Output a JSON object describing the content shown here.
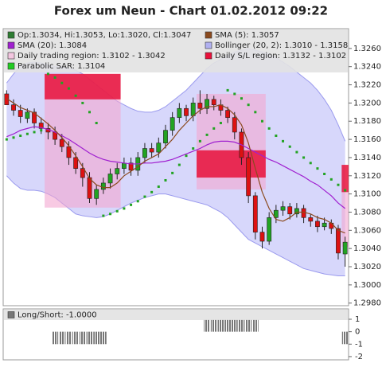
{
  "chart_data": {
    "type": "candlestick",
    "title": "Forex um Neun - Chart 01.02.2012 09:22",
    "ylim": [
      1.2978,
      1.328
    ],
    "yticks": [
      {
        "value": 1.298,
        "label": "1.2980"
      },
      {
        "value": 1.3,
        "label": "1.3000"
      },
      {
        "value": 1.302,
        "label": "1.3020"
      },
      {
        "value": 1.304,
        "label": "1.3040"
      },
      {
        "value": 1.306,
        "label": "1.3060"
      },
      {
        "value": 1.308,
        "label": "1.3080"
      },
      {
        "value": 1.31,
        "label": "1.3100"
      },
      {
        "value": 1.312,
        "label": "1.3120"
      },
      {
        "value": 1.314,
        "label": "1.3140"
      },
      {
        "value": 1.316,
        "label": "1.3160"
      },
      {
        "value": 1.318,
        "label": "1.3180"
      },
      {
        "value": 1.32,
        "label": "1.3200"
      },
      {
        "value": 1.322,
        "label": "1.3220"
      },
      {
        "value": 1.324,
        "label": "1.3240"
      },
      {
        "value": 1.326,
        "label": "1.3260"
      }
    ],
    "up_color": "#22a322",
    "down_color": "#dd1111",
    "open": [
      1.321,
      1.3198,
      1.3192,
      1.3183,
      1.319,
      1.3178,
      1.3172,
      1.3168,
      1.316,
      1.3152,
      1.314,
      1.3128,
      1.3118,
      1.3095,
      1.3105,
      1.3112,
      1.3122,
      1.3128,
      1.3134,
      1.3126,
      1.314,
      1.315,
      1.3146,
      1.3156,
      1.317,
      1.3184,
      1.3194,
      1.3186,
      1.32,
      1.3194,
      1.3204,
      1.3198,
      1.3192,
      1.3184,
      1.3168,
      1.314,
      1.3098,
      1.3058,
      1.3048,
      1.3074,
      1.3082,
      1.3086,
      1.3078,
      1.3084,
      1.3074,
      1.307,
      1.3064,
      1.3068,
      1.3062,
      1.3034
    ],
    "high": [
      1.3214,
      1.3204,
      1.3198,
      1.3194,
      1.3194,
      1.3184,
      1.3178,
      1.3174,
      1.3166,
      1.3158,
      1.3146,
      1.3134,
      1.3124,
      1.311,
      1.3118,
      1.3128,
      1.3134,
      1.314,
      1.314,
      1.3146,
      1.3156,
      1.3156,
      1.3162,
      1.3176,
      1.319,
      1.32,
      1.3198,
      1.3206,
      1.3214,
      1.321,
      1.3208,
      1.3204,
      1.3196,
      1.319,
      1.3172,
      1.3146,
      1.3102,
      1.3064,
      1.308,
      1.3088,
      1.3092,
      1.309,
      1.309,
      1.3088,
      1.3078,
      1.3076,
      1.3074,
      1.3072,
      1.3066,
      1.3053
    ],
    "low": [
      1.32,
      1.3186,
      1.3178,
      1.3178,
      1.3172,
      1.3166,
      1.316,
      1.3154,
      1.3146,
      1.3132,
      1.3122,
      1.3108,
      1.309,
      1.3088,
      1.31,
      1.3106,
      1.3116,
      1.3122,
      1.312,
      1.312,
      1.3134,
      1.314,
      1.314,
      1.315,
      1.3164,
      1.3178,
      1.318,
      1.318,
      1.3188,
      1.3188,
      1.3192,
      1.3186,
      1.3178,
      1.316,
      1.3132,
      1.309,
      1.305,
      1.304,
      1.3044,
      1.3068,
      1.3076,
      1.3072,
      1.3074,
      1.3068,
      1.3064,
      1.3058,
      1.306,
      1.3056,
      1.3028,
      1.302
    ],
    "close": [
      1.3198,
      1.3192,
      1.3185,
      1.319,
      1.3178,
      1.3172,
      1.3168,
      1.316,
      1.3152,
      1.314,
      1.3128,
      1.3118,
      1.3095,
      1.3105,
      1.3112,
      1.3122,
      1.3128,
      1.3134,
      1.3126,
      1.314,
      1.315,
      1.3146,
      1.3156,
      1.317,
      1.3184,
      1.3194,
      1.3186,
      1.32,
      1.3194,
      1.3204,
      1.3198,
      1.3192,
      1.3184,
      1.3168,
      1.314,
      1.3098,
      1.3058,
      1.3048,
      1.3074,
      1.3082,
      1.3086,
      1.3078,
      1.3084,
      1.3074,
      1.307,
      1.3064,
      1.3068,
      1.3062,
      1.3035,
      1.3047
    ],
    "sma5": {
      "color": "#8b4a1e",
      "values": [
        1.3205,
        1.32,
        1.3195,
        1.3192,
        1.3189,
        1.3183,
        1.3177,
        1.317,
        1.3162,
        1.3153,
        1.3142,
        1.313,
        1.3117,
        1.311,
        1.3107,
        1.3107,
        1.3112,
        1.312,
        1.3125,
        1.313,
        1.3136,
        1.314,
        1.3144,
        1.3152,
        1.316,
        1.317,
        1.3178,
        1.3186,
        1.3192,
        1.3196,
        1.3196,
        1.3198,
        1.3194,
        1.3187,
        1.3176,
        1.3156,
        1.3128,
        1.3102,
        1.3084,
        1.3072,
        1.307,
        1.3074,
        1.308,
        1.308,
        1.3078,
        1.3074,
        1.3072,
        1.3068,
        1.306,
        1.3057
      ]
    },
    "sma20": {
      "color": "#a020d0",
      "values": [
        1.3163,
        1.3166,
        1.317,
        1.3172,
        1.3174,
        1.3173,
        1.3171,
        1.3168,
        1.3164,
        1.316,
        1.3155,
        1.315,
        1.3145,
        1.3141,
        1.3138,
        1.3136,
        1.3135,
        1.3134,
        1.3133,
        1.3133,
        1.3134,
        1.3134,
        1.3135,
        1.3136,
        1.3138,
        1.3141,
        1.3144,
        1.3147,
        1.315,
        1.3154,
        1.3157,
        1.3158,
        1.3158,
        1.3157,
        1.3154,
        1.315,
        1.3146,
        1.3142,
        1.3138,
        1.3135,
        1.3131,
        1.3127,
        1.3123,
        1.3119,
        1.3114,
        1.311,
        1.3104,
        1.3098,
        1.309,
        1.3084
      ]
    },
    "bollinger": {
      "color": "#9a9aee",
      "fill": "#d0d0fa",
      "upper": [
        1.3222,
        1.3232,
        1.324,
        1.3244,
        1.3245,
        1.3244,
        1.3242,
        1.324,
        1.324,
        1.3238,
        1.3236,
        1.3232,
        1.3226,
        1.322,
        1.3214,
        1.3208,
        1.3202,
        1.3198,
        1.3194,
        1.3191,
        1.319,
        1.319,
        1.3192,
        1.3196,
        1.3202,
        1.3208,
        1.3214,
        1.3222,
        1.323,
        1.3238,
        1.3244,
        1.3248,
        1.3252,
        1.3256,
        1.3258,
        1.326,
        1.3258,
        1.3256,
        1.3254,
        1.325,
        1.3245,
        1.324,
        1.3234,
        1.3228,
        1.3222,
        1.3214,
        1.3204,
        1.3192,
        1.3176,
        1.3158
      ],
      "lower": [
        1.312,
        1.3112,
        1.3106,
        1.3104,
        1.3104,
        1.3103,
        1.31,
        1.3096,
        1.309,
        1.3084,
        1.3078,
        1.3076,
        1.3075,
        1.3074,
        1.3075,
        1.3078,
        1.3082,
        1.3086,
        1.309,
        1.3093,
        1.3096,
        1.3098,
        1.31,
        1.31,
        1.3098,
        1.3096,
        1.3094,
        1.3092,
        1.309,
        1.3088,
        1.3084,
        1.308,
        1.3074,
        1.3066,
        1.3058,
        1.305,
        1.3046,
        1.3042,
        1.3038,
        1.3034,
        1.303,
        1.3026,
        1.3022,
        1.3018,
        1.3016,
        1.3014,
        1.3012,
        1.3011,
        1.301,
        1.301
      ]
    },
    "sar": {
      "color": "#22a322",
      "values": [
        1.316,
        1.3162,
        1.3164,
        1.3166,
        1.3168,
        1.317,
        1.3232,
        1.3228,
        1.3222,
        1.3216,
        1.3208,
        1.32,
        1.319,
        1.3178,
        1.3076,
        1.3078,
        1.3081,
        1.3084,
        1.3088,
        1.3092,
        1.3097,
        1.3102,
        1.3108,
        1.3115,
        1.3123,
        1.3132,
        1.3142,
        1.315,
        1.3158,
        1.3165,
        1.3172,
        1.3178,
        1.3214,
        1.321,
        1.3205,
        1.3198,
        1.319,
        1.318,
        1.3172,
        1.3164,
        1.3158,
        1.3152,
        1.3146,
        1.314,
        1.3134,
        1.3128,
        1.3122,
        1.3116,
        1.311,
        1.3104
      ]
    },
    "trading_regions": {
      "color": "#f3a6d0",
      "items": [
        {
          "x": [
            6,
            17
          ],
          "high": 1.3232,
          "low": 1.3085
        },
        {
          "x": [
            28,
            38
          ],
          "high": 1.321,
          "low": 1.3105
        },
        {
          "x": [
            49,
            50
          ],
          "high": 1.3102,
          "low": 1.3042
        }
      ]
    },
    "sl_regions": {
      "color": "#e8103a",
      "items": [
        {
          "x": [
            6,
            17
          ],
          "high": 1.3232,
          "low": 1.3204
        },
        {
          "x": [
            28,
            38
          ],
          "high": 1.3148,
          "low": 1.3118
        },
        {
          "x": [
            49,
            50
          ],
          "high": 1.3132,
          "low": 1.3102
        }
      ]
    },
    "legend": [
      {
        "label": "Op:1.3034, Hi:1.3053, Lo:1.3020, Cl:1.3047",
        "color": "#2e7d32"
      },
      {
        "label": "SMA (5): 1.3057",
        "color": "#8b4a1e"
      },
      {
        "label": "SMA (20): 1.3084",
        "color": "#a020d0"
      },
      {
        "label": "Bollinger (20, 2): 1.3010 - 1.3158",
        "color": "#b0b0f0"
      },
      {
        "label": "Daily trading region: 1.3102 - 1.3042",
        "color": "#f3c6e0"
      },
      {
        "label": "Daily S/L region: 1.3132 - 1.3102",
        "color": "#e8103a"
      },
      {
        "label": "Parabolic SAR: 1.3104",
        "color": "#22cc22"
      }
    ],
    "long_short": {
      "legend": "Long/Short: -1.0000",
      "color": "#777777",
      "ylim": [
        -2.26,
        1.83
      ],
      "yticks": [
        1,
        0,
        -1,
        -2
      ],
      "values": [
        0,
        0,
        0,
        0,
        0,
        0,
        0,
        -1,
        -1,
        -1,
        -1,
        -1,
        -1,
        -1,
        -1,
        0,
        0,
        0,
        0,
        0,
        0,
        0,
        0,
        0,
        0,
        0,
        0,
        0,
        0,
        1,
        1,
        1,
        1,
        1,
        1,
        1,
        1,
        0,
        0,
        0,
        0,
        0,
        0,
        0,
        0,
        0,
        0,
        0,
        0,
        -1
      ]
    }
  }
}
